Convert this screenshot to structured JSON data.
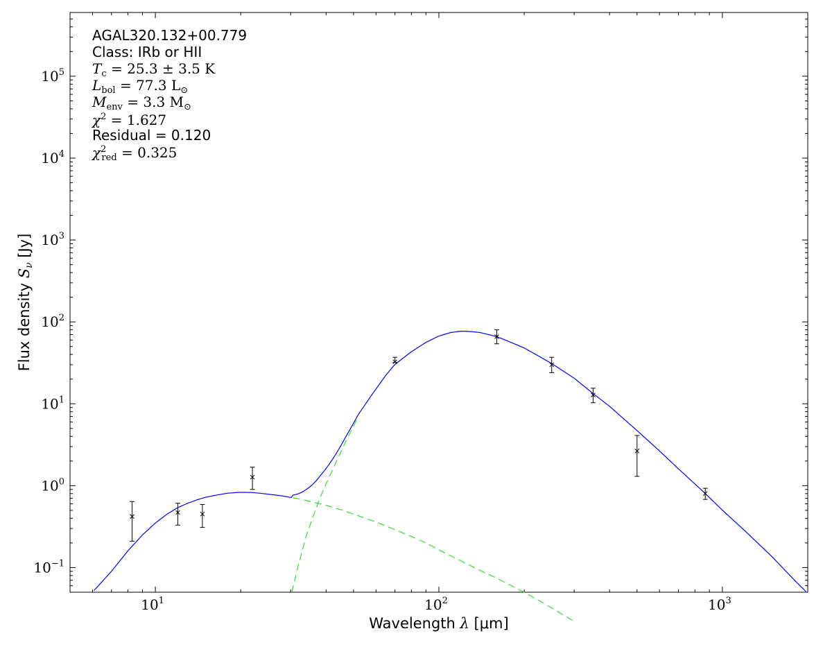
{
  "chart_data": {
    "type": "scatter",
    "x_scale": "log",
    "y_scale": "log",
    "xlim": [
      5,
      2000
    ],
    "ylim": [
      0.05,
      600000
    ],
    "xlabel": {
      "prefix": "Wavelength ",
      "symbol": "λ",
      "unit": " [μm]"
    },
    "ylabel": {
      "prefix": "Flux density ",
      "symbol": "S",
      "sub": "ν",
      "unit": " [Jy]"
    },
    "x_major_ticks": [
      {
        "value": 10,
        "base": "10",
        "exp": "1"
      },
      {
        "value": 100,
        "base": "10",
        "exp": "2"
      },
      {
        "value": 1000,
        "base": "10",
        "exp": "3"
      }
    ],
    "y_major_ticks": [
      {
        "value": 0.1,
        "base": "10",
        "exp": "−1"
      },
      {
        "value": 1,
        "base": "10",
        "exp": "0"
      },
      {
        "value": 10,
        "base": "10",
        "exp": "1"
      },
      {
        "value": 100,
        "base": "10",
        "exp": "2"
      },
      {
        "value": 1000,
        "base": "10",
        "exp": "3"
      },
      {
        "value": 10000,
        "base": "10",
        "exp": "4"
      },
      {
        "value": 100000,
        "base": "10",
        "exp": "5"
      }
    ],
    "annotations": {
      "source": "AGAL320.132+00.779",
      "class_line": "Class: IRb or HII",
      "tc": {
        "sym": "T",
        "sub": "c",
        "rest": " = 25.3 ± 3.5 K"
      },
      "lbol": {
        "sym": "L",
        "sub": "bol",
        "rest": " = 77.3 L",
        "unit_sub": "⊙"
      },
      "menv": {
        "sym": "M",
        "sub": "env",
        "rest": " = 3.3 M",
        "unit_sub": "⊙"
      },
      "chi2": {
        "sym": "χ",
        "sup": "2",
        "rest": " = 1.627"
      },
      "residual": "Residual = 0.120",
      "chi2red": {
        "sym": "χ",
        "sup": "2",
        "sub": "red",
        "rest": " = 0.325"
      }
    },
    "data_points": [
      {
        "x": 8.28,
        "y": 0.42,
        "err_low": 0.21,
        "err_high": 0.64
      },
      {
        "x": 12.0,
        "y": 0.47,
        "err_low": 0.33,
        "err_high": 0.61
      },
      {
        "x": 14.65,
        "y": 0.45,
        "err_low": 0.31,
        "err_high": 0.59
      },
      {
        "x": 22.0,
        "y": 1.27,
        "err_low": 0.9,
        "err_high": 1.68
      },
      {
        "x": 70,
        "y": 32.5,
        "err_low": 32.0,
        "err_high": 37.0
      },
      {
        "x": 160,
        "y": 66,
        "err_low": 54,
        "err_high": 80
      },
      {
        "x": 250,
        "y": 30,
        "err_low": 24,
        "err_high": 37
      },
      {
        "x": 350,
        "y": 12.8,
        "err_low": 10.3,
        "err_high": 15.5
      },
      {
        "x": 500,
        "y": 2.65,
        "err_low": 1.3,
        "err_high": 4.1
      },
      {
        "x": 870,
        "y": 0.8,
        "err_low": 0.68,
        "err_high": 0.93
      }
    ],
    "model_curves": {
      "total_color": "#0000ff",
      "component_color": "#33dd33",
      "warm_component": [
        [
          5,
          0.028
        ],
        [
          6,
          0.05
        ],
        [
          7,
          0.09
        ],
        [
          8,
          0.16
        ],
        [
          9,
          0.25
        ],
        [
          10,
          0.35
        ],
        [
          11,
          0.45
        ],
        [
          12,
          0.54
        ],
        [
          13,
          0.61
        ],
        [
          14,
          0.67
        ],
        [
          15,
          0.72
        ],
        [
          16.5,
          0.77
        ],
        [
          18,
          0.81
        ],
        [
          20,
          0.83
        ],
        [
          22,
          0.825
        ],
        [
          24,
          0.8
        ],
        [
          26,
          0.775
        ],
        [
          28,
          0.75
        ],
        [
          30,
          0.72
        ],
        [
          33,
          0.675
        ],
        [
          36,
          0.63
        ],
        [
          40,
          0.575
        ],
        [
          45,
          0.51
        ],
        [
          50,
          0.45
        ],
        [
          60,
          0.36
        ],
        [
          70,
          0.29
        ],
        [
          80,
          0.24
        ],
        [
          90,
          0.2
        ],
        [
          100,
          0.165
        ],
        [
          120,
          0.12
        ],
        [
          140,
          0.092
        ],
        [
          160,
          0.074
        ],
        [
          200,
          0.05
        ],
        [
          240,
          0.035
        ],
        [
          300,
          0.022
        ]
      ],
      "cold_component": [
        [
          30.3,
          0.05
        ],
        [
          32,
          0.11
        ],
        [
          34,
          0.24
        ],
        [
          36,
          0.42
        ],
        [
          38,
          0.7
        ],
        [
          40,
          1.05
        ],
        [
          43,
          1.8
        ],
        [
          47,
          3.5
        ],
        [
          52,
          7.0
        ],
        [
          58,
          12.5
        ],
        [
          65,
          22
        ],
        [
          70,
          30
        ],
        [
          80,
          43
        ],
        [
          90,
          56
        ],
        [
          100,
          67
        ],
        [
          110,
          74
        ],
        [
          120,
          77
        ],
        [
          130,
          76
        ],
        [
          140,
          74
        ],
        [
          160,
          66
        ],
        [
          180,
          56
        ],
        [
          200,
          48
        ],
        [
          250,
          31
        ],
        [
          300,
          20.5
        ],
        [
          350,
          13.3
        ],
        [
          400,
          9.3
        ],
        [
          500,
          4.7
        ],
        [
          600,
          2.65
        ],
        [
          700,
          1.6
        ],
        [
          870,
          0.8
        ],
        [
          1000,
          0.5
        ],
        [
          1200,
          0.28
        ],
        [
          1500,
          0.134
        ],
        [
          1800,
          0.069
        ],
        [
          2000,
          0.048
        ]
      ]
    }
  }
}
